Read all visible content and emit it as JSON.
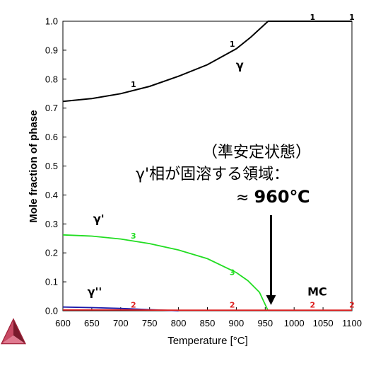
{
  "chart_data": {
    "type": "line",
    "xlabel": "Temperature [°C]",
    "ylabel": "Mole fraction of phase",
    "xlim": [
      600,
      1100
    ],
    "ylim": [
      0,
      1.0
    ],
    "xticks": [
      600,
      650,
      700,
      750,
      800,
      850,
      900,
      950,
      1000,
      1050,
      1100
    ],
    "yticks": [
      "0.0",
      "0.1",
      "0.2",
      "0.3",
      "0.4",
      "0.5",
      "0.6",
      "0.7",
      "0.8",
      "0.9",
      "1.0"
    ],
    "grid": false,
    "series": [
      {
        "name": "γ",
        "marker": "1",
        "color": "#000000",
        "points": [
          [
            600,
            0.723
          ],
          [
            650,
            0.733
          ],
          [
            700,
            0.75
          ],
          [
            750,
            0.775
          ],
          [
            800,
            0.81
          ],
          [
            850,
            0.85
          ],
          [
            900,
            0.905
          ],
          [
            925,
            0.945
          ],
          [
            955,
            1.0
          ],
          [
            1000,
            1.0
          ],
          [
            1050,
            1.0
          ],
          [
            1100,
            1.0
          ]
        ],
        "marker_points": [
          [
            722,
            0.768
          ],
          [
            893,
            0.907
          ],
          [
            1032,
            1.0
          ],
          [
            1100,
            1.0
          ]
        ]
      },
      {
        "name": "γ'",
        "marker": "3",
        "color": "#22dd22",
        "points": [
          [
            600,
            0.262
          ],
          [
            650,
            0.258
          ],
          [
            700,
            0.248
          ],
          [
            750,
            0.232
          ],
          [
            800,
            0.21
          ],
          [
            850,
            0.18
          ],
          [
            900,
            0.132
          ],
          [
            920,
            0.104
          ],
          [
            940,
            0.064
          ],
          [
            955,
            0.0
          ]
        ],
        "marker_points": [
          [
            722,
            0.245
          ],
          [
            893,
            0.118
          ]
        ]
      },
      {
        "name": "γ''",
        "marker": "",
        "color": "#1a1aaa",
        "points": [
          [
            600,
            0.013
          ],
          [
            650,
            0.011
          ],
          [
            700,
            0.008
          ],
          [
            750,
            0.004
          ],
          [
            800,
            0.0
          ]
        ]
      },
      {
        "name": "MC",
        "marker": "2",
        "color": "#dd2222",
        "points": [
          [
            600,
            0.003
          ],
          [
            700,
            0.003
          ],
          [
            800,
            0.002
          ],
          [
            900,
            0.002
          ],
          [
            1000,
            0.002
          ],
          [
            1100,
            0.002
          ]
        ],
        "marker_points": [
          [
            722,
            0.006
          ],
          [
            893,
            0.006
          ],
          [
            1032,
            0.006
          ],
          [
            1100,
            0.006
          ]
        ]
      }
    ],
    "labels": [
      {
        "text": "γ",
        "x": 906,
        "y": 0.835
      },
      {
        "text": "γ'",
        "x": 662,
        "y": 0.305
      },
      {
        "text": "γ''",
        "x": 655,
        "y": 0.053
      },
      {
        "text": "MC",
        "x": 1040,
        "y": 0.053
      }
    ],
    "annotation": {
      "line1": "（準安定状態）",
      "line2": "γ'相が固溶する領域：",
      "line3_prefix": "≈ ",
      "line3_value": "960℃",
      "arrow_x": 960,
      "arrow_from_y": 0.33,
      "arrow_to_y": 0.02
    }
  },
  "logo": {
    "name": "Thermo-Calc",
    "colors": [
      "#a0233a",
      "#c84a64",
      "#7a1a2c"
    ]
  }
}
